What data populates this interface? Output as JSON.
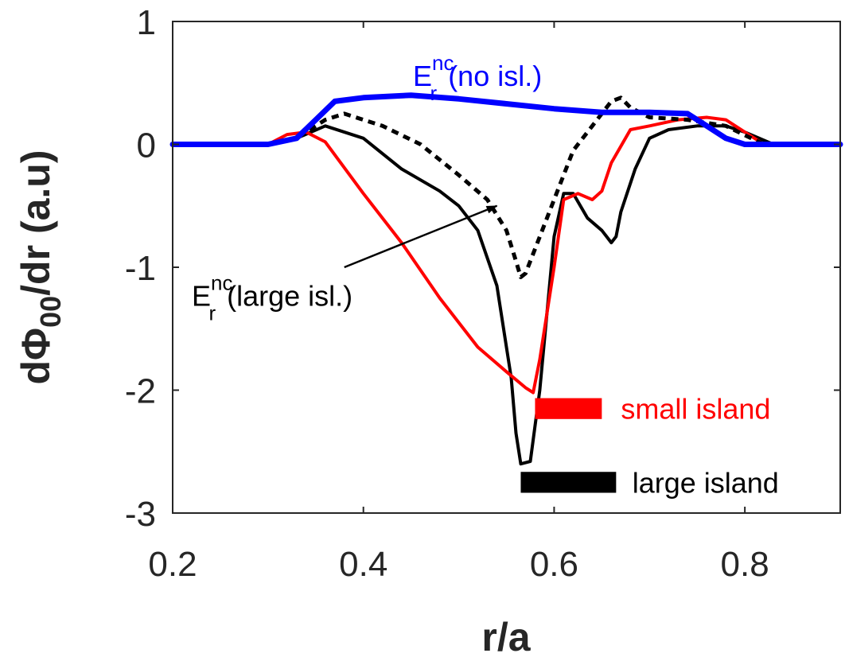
{
  "chart_data": {
    "type": "line",
    "title": "",
    "xlabel": "r/a",
    "ylabel": {
      "pre": "d",
      "phi": "Φ",
      "sub": "00",
      "post": "/dr (a.u)"
    },
    "xlim": [
      0.2,
      0.9
    ],
    "ylim": [
      -3,
      1
    ],
    "xticks": [
      0.2,
      0.4,
      0.6,
      0.8
    ],
    "xtick_labels": [
      "0.2",
      "0.4",
      "0.6",
      "0.8"
    ],
    "yticks": [
      1,
      0,
      -1,
      -2,
      -3
    ],
    "ytick_labels": [
      "1",
      "0",
      "-1",
      "-2",
      "-3"
    ],
    "grid": false,
    "series": [
      {
        "key": "large_island",
        "color": "#000000",
        "width": 4,
        "dash": "",
        "x": [
          0.2,
          0.3,
          0.33,
          0.36,
          0.4,
          0.44,
          0.48,
          0.5,
          0.52,
          0.54,
          0.555,
          0.56,
          0.565,
          0.575,
          0.585,
          0.6,
          0.61,
          0.62,
          0.635,
          0.65,
          0.66,
          0.665,
          0.67,
          0.685,
          0.7,
          0.72,
          0.75,
          0.78,
          0.8,
          0.83,
          0.9
        ],
        "y": [
          0,
          0,
          0.05,
          0.15,
          0.05,
          -0.2,
          -0.38,
          -0.5,
          -0.7,
          -1.15,
          -1.9,
          -2.35,
          -2.6,
          -2.58,
          -2.0,
          -0.75,
          -0.4,
          -0.4,
          -0.6,
          -0.7,
          -0.8,
          -0.75,
          -0.55,
          -0.2,
          0.05,
          0.12,
          0.15,
          0.15,
          0.1,
          0,
          0
        ]
      },
      {
        "key": "small_island",
        "color": "#ff0000",
        "width": 4,
        "dash": "",
        "x": [
          0.2,
          0.3,
          0.32,
          0.34,
          0.36,
          0.4,
          0.44,
          0.48,
          0.52,
          0.55,
          0.57,
          0.578,
          0.585,
          0.6,
          0.61,
          0.625,
          0.64,
          0.65,
          0.66,
          0.68,
          0.7,
          0.73,
          0.76,
          0.78,
          0.8,
          0.82,
          0.9
        ],
        "y": [
          0,
          0,
          0.08,
          0.1,
          0.02,
          -0.4,
          -0.8,
          -1.25,
          -1.65,
          -1.85,
          -1.98,
          -2.02,
          -1.75,
          -1.0,
          -0.45,
          -0.4,
          -0.45,
          -0.38,
          -0.15,
          0.12,
          0.15,
          0.2,
          0.22,
          0.2,
          0.1,
          0,
          0
        ]
      },
      {
        "key": "nc_large_isl",
        "color": "#000000",
        "width": 5,
        "dash": "9,7",
        "x": [
          0.2,
          0.3,
          0.33,
          0.36,
          0.38,
          0.42,
          0.46,
          0.5,
          0.53,
          0.55,
          0.56,
          0.565,
          0.57,
          0.58,
          0.6,
          0.62,
          0.64,
          0.66,
          0.67,
          0.68,
          0.7,
          0.74,
          0.78,
          0.82,
          0.9
        ],
        "y": [
          0,
          0,
          0.05,
          0.2,
          0.25,
          0.15,
          0,
          -0.25,
          -0.45,
          -0.7,
          -0.95,
          -1.08,
          -1.05,
          -0.85,
          -0.45,
          -0.05,
          0.15,
          0.35,
          0.38,
          0.3,
          0.22,
          0.2,
          0.15,
          0,
          0
        ]
      },
      {
        "key": "nc_no_isl",
        "color": "#0000ff",
        "width": 7,
        "dash": "",
        "x": [
          0.2,
          0.3,
          0.33,
          0.35,
          0.37,
          0.4,
          0.45,
          0.5,
          0.55,
          0.6,
          0.65,
          0.7,
          0.74,
          0.76,
          0.78,
          0.8,
          0.9
        ],
        "y": [
          0,
          0,
          0.05,
          0.2,
          0.35,
          0.38,
          0.4,
          0.37,
          0.33,
          0.29,
          0.26,
          0.26,
          0.25,
          0.15,
          0.05,
          0,
          0
        ]
      }
    ],
    "bars": [
      {
        "key": "small_island_bar",
        "color": "#ff0000",
        "x0": 0.58,
        "x1": 0.65,
        "y": -2.15,
        "thickness": 0.17
      },
      {
        "key": "large_island_bar",
        "color": "#000000",
        "x0": 0.565,
        "x1": 0.665,
        "y": -2.75,
        "thickness": 0.17
      }
    ],
    "annotations": {
      "small_island": {
        "text": "small island",
        "color": "#ff0000",
        "x": 0.67,
        "y": -2.15
      },
      "large_island": {
        "text": "large island",
        "color": "#000000",
        "x": 0.682,
        "y": -2.75
      },
      "nc_no_isl": {
        "base": "E",
        "sup": "nc",
        "sub": "r",
        "rest": "(no isl.)",
        "color": "#0000ff",
        "x": 0.452,
        "y": 0.56
      },
      "nc_large_isl": {
        "base": "E",
        "sup": "nc",
        "sub": "r",
        "rest": "(large isl.)",
        "color": "#000000",
        "x": 0.22,
        "y": -1.23
      },
      "arrow": {
        "from": [
          0.38,
          -1.0
        ],
        "to": [
          0.54,
          -0.5
        ]
      }
    }
  }
}
